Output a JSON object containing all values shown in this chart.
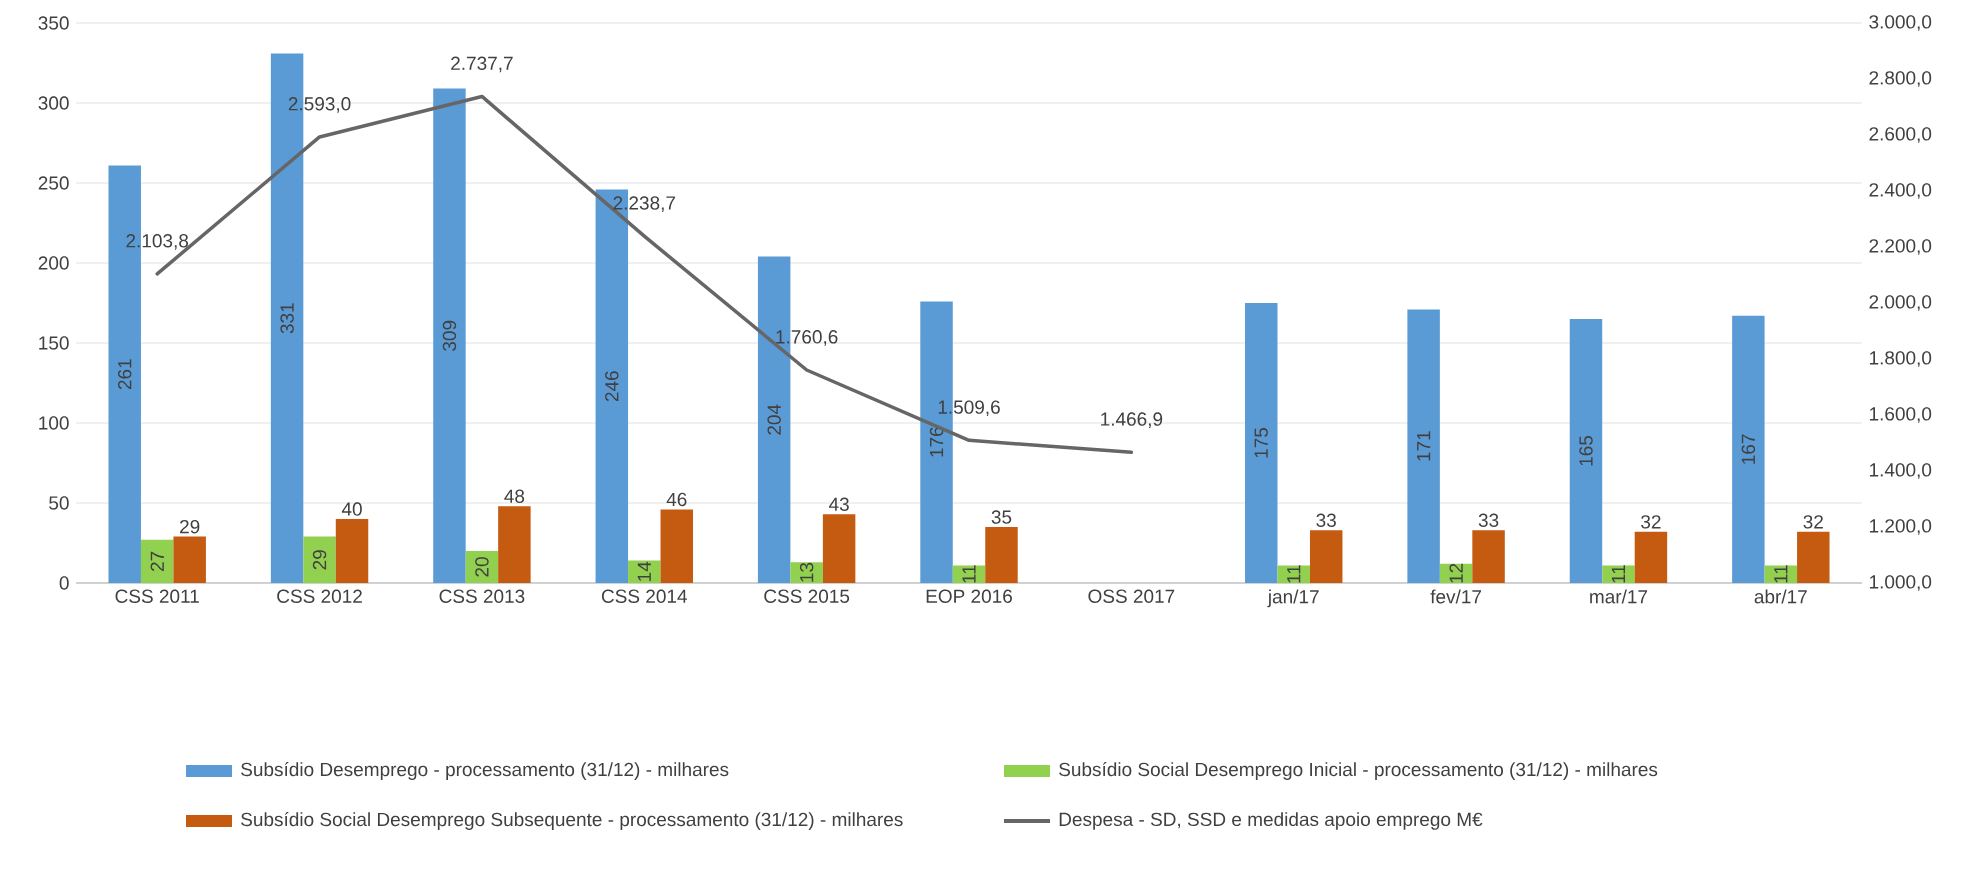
{
  "chart_data": {
    "type": "bar",
    "categories": [
      "CSS 2011",
      "CSS 2012",
      "CSS 2013",
      "CSS 2014",
      "CSS 2015",
      "EOP 2016",
      "OSS 2017",
      "jan/17",
      "fev/17",
      "mar/17",
      "abr/17"
    ],
    "series": [
      {
        "name": "Subsídio Desemprego - processamento (31/12) - milhares",
        "color": "#5b9bd5",
        "values": [
          261,
          331,
          309,
          246,
          204,
          176,
          null,
          175,
          171,
          165,
          167
        ],
        "value_labels": [
          "261",
          "331",
          "309",
          "246",
          "204",
          "176",
          null,
          "175",
          "171",
          "165",
          "167"
        ]
      },
      {
        "name": "Subsídio Social Desemprego Inicial - processamento (31/12) - milhares",
        "color": "#92d050",
        "values": [
          27,
          29,
          20,
          14,
          13,
          11,
          null,
          11,
          12,
          11,
          11
        ],
        "value_labels": [
          "27",
          "29",
          "20",
          "14",
          "13",
          "11",
          null,
          "11",
          "12",
          "11",
          "11"
        ]
      },
      {
        "name": "Subsídio Social Desemprego Subsequente - processamento (31/12) - milhares",
        "color": "#c55a11",
        "values": [
          29,
          40,
          48,
          46,
          43,
          35,
          null,
          33,
          33,
          32,
          32
        ],
        "value_labels": [
          "29",
          "40",
          "48",
          "46",
          "43",
          "35",
          null,
          "33",
          "33",
          "32",
          "32"
        ]
      },
      {
        "name": "Despesa - SD, SSD e medidas apoio emprego M€",
        "type": "line",
        "axis": "y2",
        "color": "#666666",
        "values": [
          2103.8,
          2593.0,
          2737.7,
          2238.7,
          1760.6,
          1509.6,
          1466.9,
          null,
          null,
          null,
          null
        ],
        "value_labels": [
          "2.103,8",
          "2.593,0",
          "2.737,7",
          "2.238,7",
          "1.760,6",
          "1.509,6",
          "1.466,9",
          null,
          null,
          null,
          null
        ]
      }
    ],
    "ylim": [
      0,
      350
    ],
    "yticks": [
      0,
      50,
      100,
      150,
      200,
      250,
      300,
      350
    ],
    "y2lim": [
      1000,
      3000
    ],
    "y2ticks": [
      {
        "value": 1000,
        "label": "1.000,0"
      },
      {
        "value": 1200,
        "label": "1.200,0"
      },
      {
        "value": 1400,
        "label": "1.400,0"
      },
      {
        "value": 1600,
        "label": "1.600,0"
      },
      {
        "value": 1800,
        "label": "1.800,0"
      },
      {
        "value": 2000,
        "label": "2.000,0"
      },
      {
        "value": 2200,
        "label": "2.200,0"
      },
      {
        "value": 2400,
        "label": "2.400,0"
      },
      {
        "value": 2600,
        "label": "2.600,0"
      },
      {
        "value": 2800,
        "label": "2.800,0"
      },
      {
        "value": 3000,
        "label": "3.000,0"
      }
    ],
    "grid": "y",
    "legend": "bottom"
  }
}
